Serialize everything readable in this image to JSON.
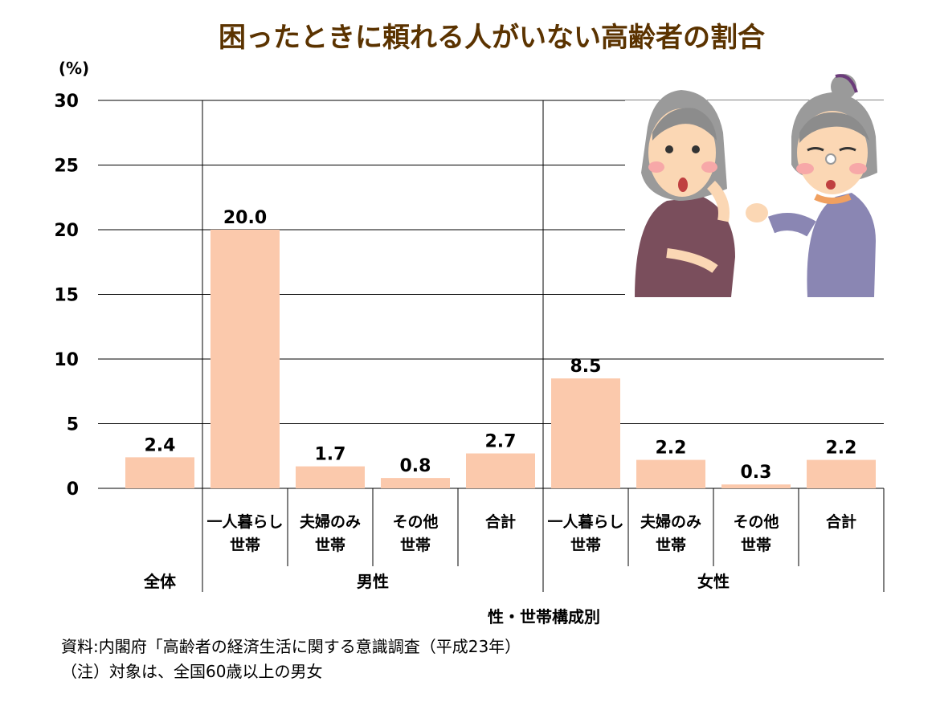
{
  "chart_data": {
    "type": "bar",
    "title": "困ったときに頼れる人がいない高齢者の割合",
    "unit_label": "(%)",
    "xlabel": "性・世帯構成別",
    "ylim": [
      0,
      30
    ],
    "yticks": [
      "0",
      "5",
      "10",
      "15",
      "20",
      "25",
      "30"
    ],
    "categories": [
      {
        "lines": [
          ""
        ],
        "group": "全体",
        "value": 2.4,
        "label": "2.4"
      },
      {
        "lines": [
          "一人暮らし",
          "世帯"
        ],
        "group": "男性",
        "value": 20.0,
        "label": "20.0"
      },
      {
        "lines": [
          "夫婦のみ",
          "世帯"
        ],
        "group": "男性",
        "value": 1.7,
        "label": "1.7"
      },
      {
        "lines": [
          "その他",
          "世帯"
        ],
        "group": "男性",
        "value": 0.8,
        "label": "0.8"
      },
      {
        "lines": [
          "合計"
        ],
        "group": "男性",
        "value": 2.7,
        "label": "2.7"
      },
      {
        "lines": [
          "一人暮らし",
          "世帯"
        ],
        "group": "女性",
        "value": 8.5,
        "label": "8.5"
      },
      {
        "lines": [
          "夫婦のみ",
          "世帯"
        ],
        "group": "女性",
        "value": 2.2,
        "label": "2.2"
      },
      {
        "lines": [
          "その他",
          "世帯"
        ],
        "group": "女性",
        "value": 0.3,
        "label": "0.3"
      },
      {
        "lines": [
          "合計"
        ],
        "group": "女性",
        "value": 2.2,
        "label": "2.2"
      }
    ],
    "groups": [
      "全体",
      "男性",
      "女性"
    ],
    "grid": true,
    "legend": "none",
    "bar_color": "#fbc9ac",
    "title_color": "#5b3300"
  },
  "notes": {
    "source": "資料:内閣府「高齢者の経済生活に関する意識調査（平成23年）",
    "note": "（注）対象は、全国60歳以上の男女"
  },
  "illustration": {
    "icon": "elderly-women-illustration"
  }
}
